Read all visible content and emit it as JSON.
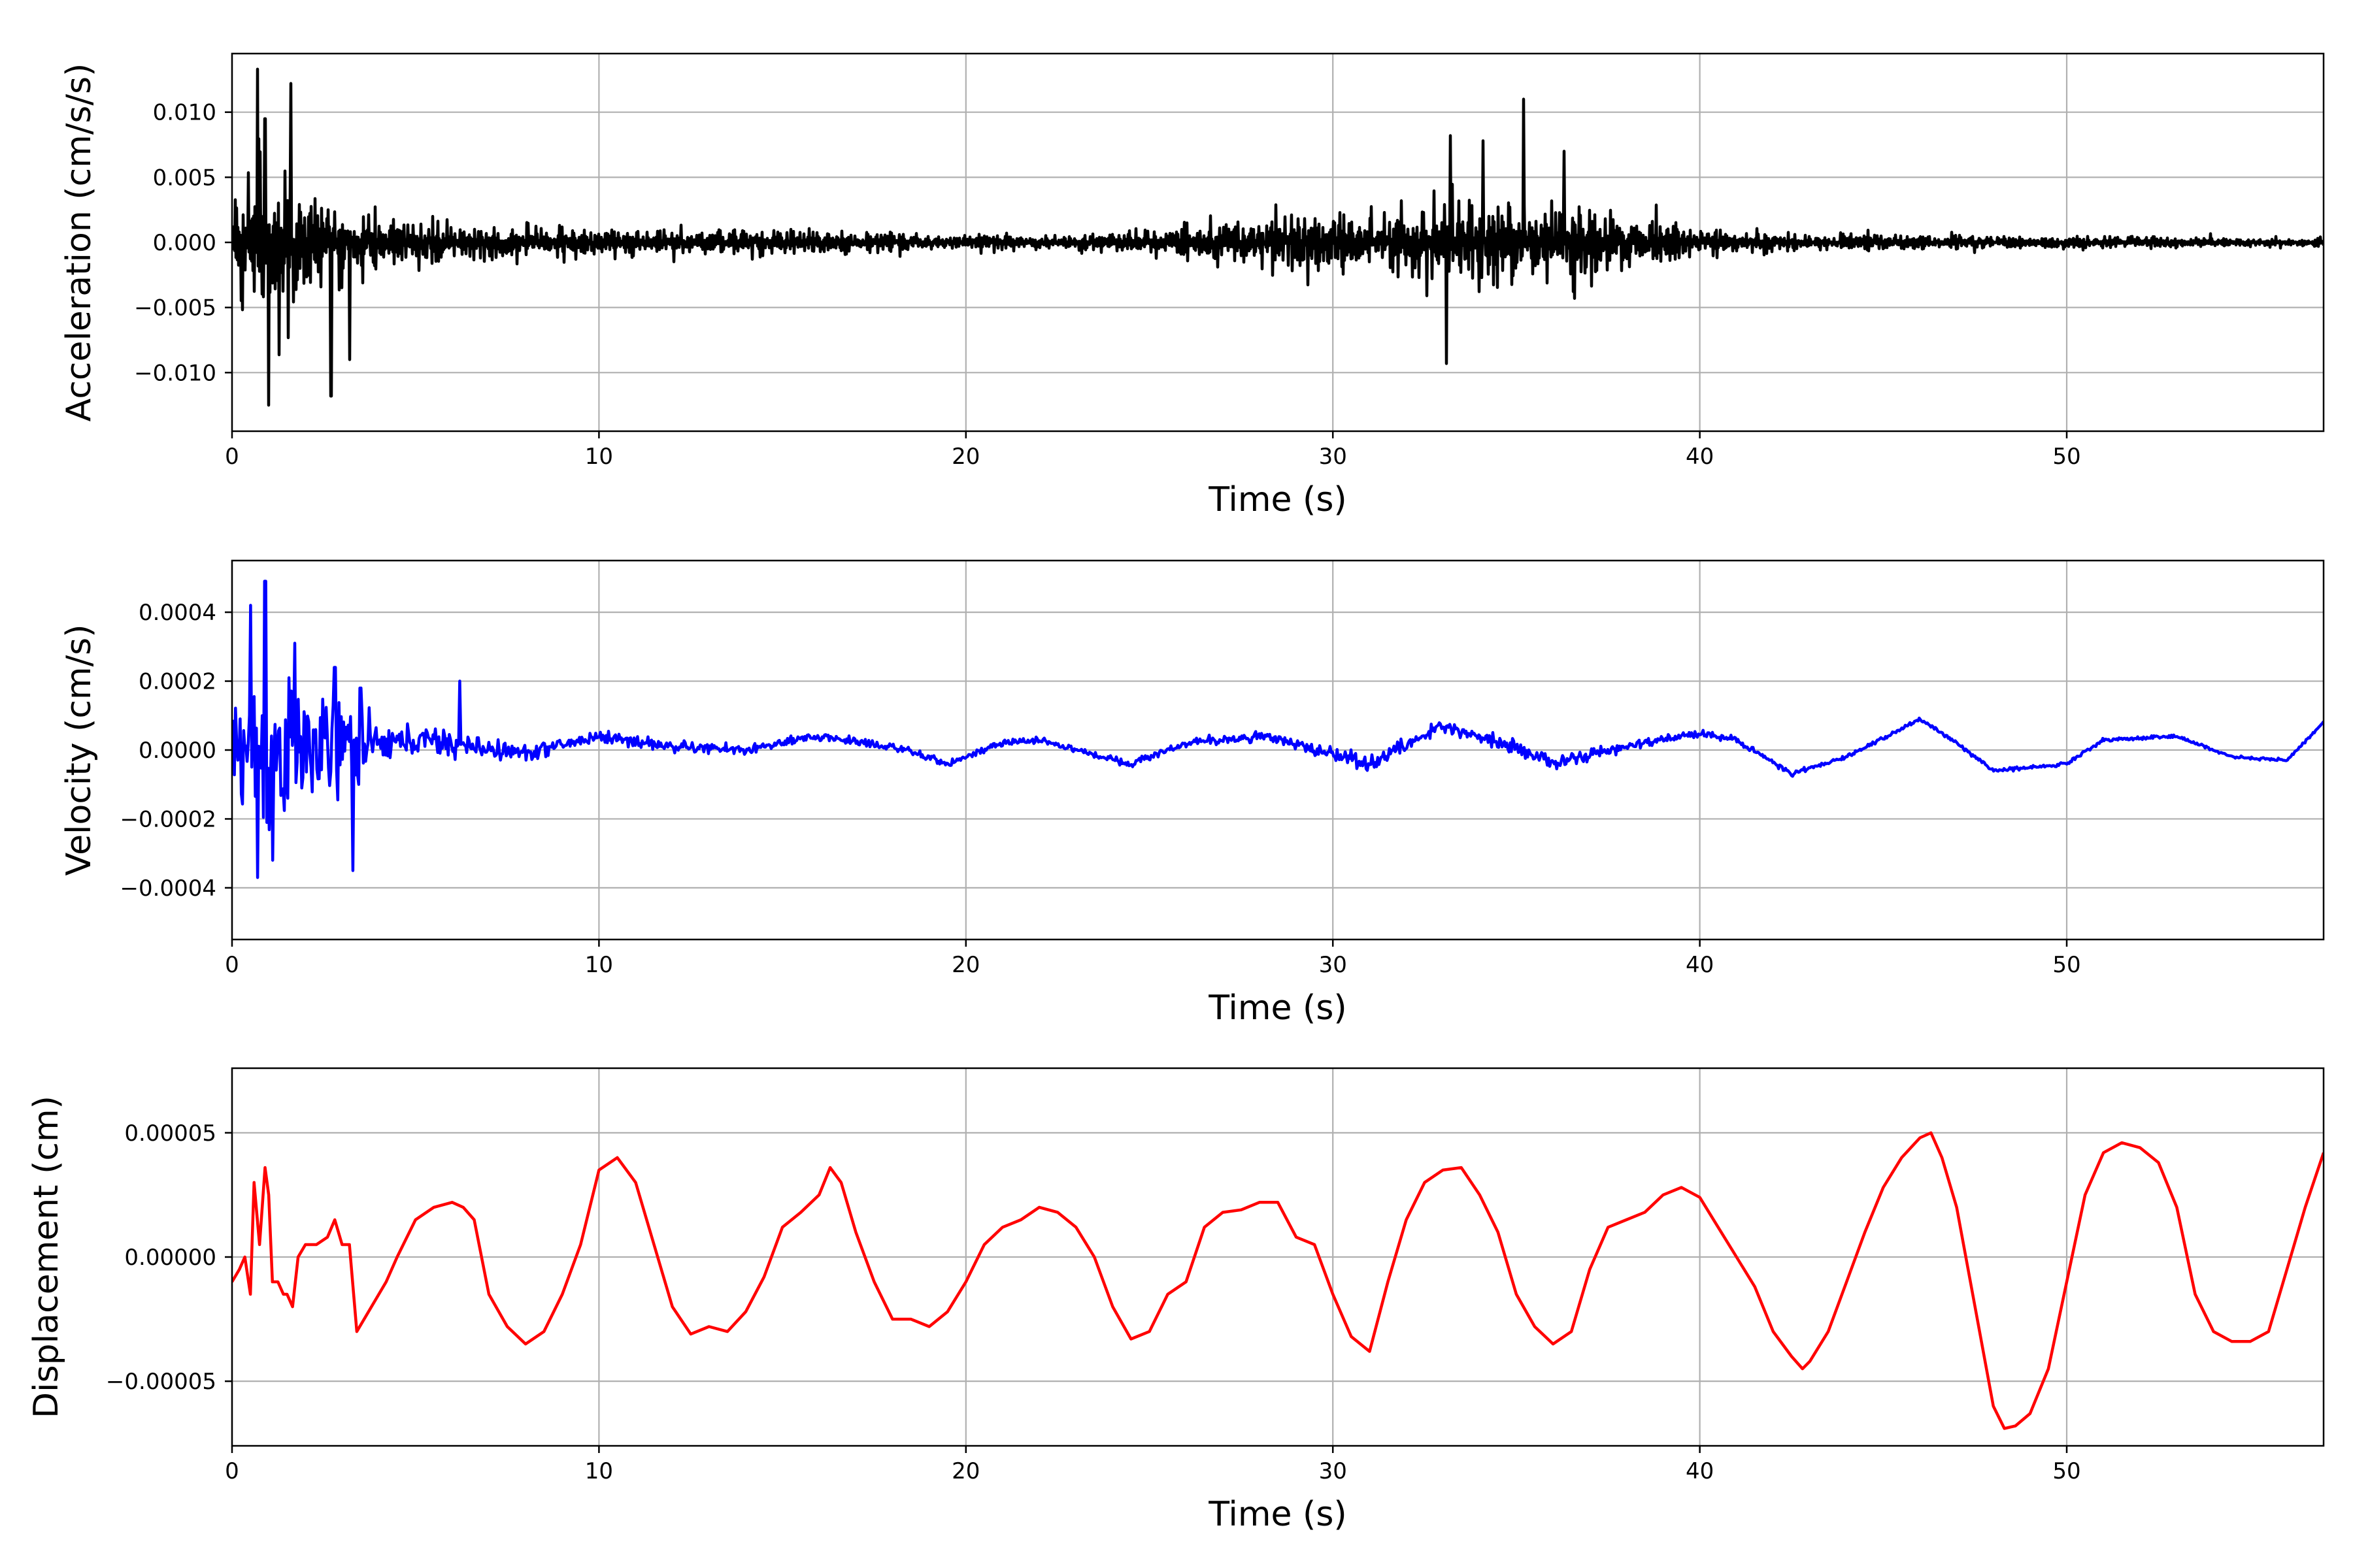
{
  "chart_data": [
    {
      "type": "line",
      "xlabel": "Time (s)",
      "ylabel": "Acceleration (cm/s/s)",
      "xlim": [
        0,
        57
      ],
      "ylim": [
        -0.0145,
        0.0145
      ],
      "xticks": [
        0,
        10,
        20,
        30,
        40,
        50
      ],
      "xtick_labels": [
        "0",
        "10",
        "20",
        "30",
        "40",
        "50"
      ],
      "yticks": [
        -0.01,
        -0.005,
        0.0,
        0.005,
        0.01
      ],
      "ytick_labels": [
        "−0.010",
        "−0.005",
        "0.000",
        "0.005",
        "0.010"
      ],
      "grid": true,
      "color": "#000000",
      "signal": "dense oscillating record: strong early burst 0–3 s, low-level noise 4–25 s, second burst 26–40 s, tapering after 42 s",
      "envelope": {
        "t": [
          0,
          0.5,
          1,
          1.5,
          2,
          2.5,
          3,
          3.5,
          4,
          5,
          6,
          7,
          8,
          10,
          12,
          15,
          18,
          20,
          22,
          24,
          25,
          26,
          28,
          30,
          32,
          33,
          34,
          35,
          36,
          37,
          38,
          39,
          40,
          41,
          42,
          43,
          45,
          50,
          53,
          55,
          57
        ],
        "amp": [
          0.009,
          0.011,
          0.012,
          0.01,
          0.0075,
          0.007,
          0.006,
          0.005,
          0.004,
          0.0035,
          0.003,
          0.0027,
          0.0025,
          0.0022,
          0.002,
          0.0018,
          0.0015,
          0.0012,
          0.0011,
          0.0012,
          0.0018,
          0.0025,
          0.0035,
          0.0045,
          0.0055,
          0.006,
          0.006,
          0.0065,
          0.0055,
          0.0045,
          0.004,
          0.0035,
          0.0022,
          0.0018,
          0.0015,
          0.0012,
          0.0011,
          0.0009,
          0.0008,
          0.0007,
          0.0006
        ]
      },
      "peaks": {
        "x": [
          0.7,
          1.0,
          1.6,
          0.9,
          2.7,
          3.2,
          35.2,
          33.2,
          34.1,
          36.3,
          33.1
        ],
        "y": [
          0.0133,
          -0.0125,
          0.0122,
          0.0095,
          -0.0118,
          -0.009,
          0.011,
          0.0082,
          0.0078,
          0.007,
          -0.0093
        ]
      }
    },
    {
      "type": "line",
      "xlabel": "Time (s)",
      "ylabel": "Velocity (cm/s)",
      "xlim": [
        0,
        57
      ],
      "ylim": [
        -0.00055,
        0.00055
      ],
      "xticks": [
        0,
        10,
        20,
        30,
        40,
        50
      ],
      "xtick_labels": [
        "0",
        "10",
        "20",
        "30",
        "40",
        "50"
      ],
      "yticks": [
        -0.0004,
        -0.0002,
        0.0,
        0.0002,
        0.0004
      ],
      "ytick_labels": [
        "−0.0004",
        "−0.0002",
        "0.0000",
        "0.0002",
        "0.0004"
      ],
      "grid": true,
      "color": "#0000ff",
      "trend": {
        "x": [
          0,
          3,
          5,
          8,
          10,
          12,
          14,
          16,
          18,
          19.5,
          21,
          22,
          23,
          24.5,
          26,
          28,
          30,
          31,
          33,
          35,
          36,
          38,
          40,
          41,
          42.5,
          44,
          46,
          47,
          48,
          50,
          51,
          53,
          54.5,
          56,
          57
        ],
        "y": [
          0,
          0,
          3e-05,
          -1e-05,
          4e-05,
          1e-05,
          0.0,
          4e-05,
          1e-05,
          -4e-05,
          2e-05,
          3e-05,
          0.0,
          -4e-05,
          2e-05,
          4e-05,
          -1e-05,
          -4e-05,
          7e-05,
          1e-05,
          -4e-05,
          1e-05,
          5e-05,
          3e-05,
          -7e-05,
          -2e-05,
          9e-05,
          2e-05,
          -6e-05,
          -4e-05,
          3e-05,
          4e-05,
          -2e-05,
          -3e-05,
          8e-05
        ]
      },
      "envelope": {
        "t": [
          0,
          0.5,
          1,
          1.5,
          2,
          2.5,
          3,
          3.5,
          4,
          5,
          6,
          7,
          9,
          12,
          15,
          18,
          20,
          25,
          30,
          33,
          35,
          38,
          40,
          42,
          45,
          57
        ],
        "amp": [
          0.00015,
          0.00038,
          0.00042,
          0.0003,
          0.00025,
          0.0002,
          0.00025,
          0.00018,
          7e-05,
          7e-05,
          6e-05,
          4e-05,
          3e-05,
          2.5e-05,
          2e-05,
          2e-05,
          1.2e-05,
          1.5e-05,
          3e-05,
          3e-05,
          3e-05,
          2e-05,
          1.5e-05,
          1e-05,
          8e-06,
          6e-06
        ]
      },
      "peaks": {
        "x": [
          0.5,
          0.7,
          0.9,
          1.1,
          1.7,
          2.8,
          3.3,
          3.5,
          6.2
        ],
        "y": [
          0.00042,
          -0.00037,
          0.00049,
          -0.00032,
          0.00031,
          0.00024,
          -0.00035,
          0.00018,
          0.0002
        ]
      }
    },
    {
      "type": "line",
      "xlabel": "Time (s)",
      "ylabel": "Displacement (cm)",
      "xlim": [
        0,
        57
      ],
      "ylim": [
        -7.6e-05,
        7.6e-05
      ],
      "xticks": [
        0,
        10,
        20,
        30,
        40,
        50
      ],
      "xtick_labels": [
        "0",
        "10",
        "20",
        "30",
        "40",
        "50"
      ],
      "yticks": [
        -5e-05,
        0.0,
        5e-05
      ],
      "ytick_labels": [
        "−0.00005",
        "0.00000",
        "0.00005"
      ],
      "grid": true,
      "color": "#ff0000",
      "x": [
        0,
        0.2,
        0.35,
        0.5,
        0.6,
        0.75,
        0.9,
        1.0,
        1.1,
        1.25,
        1.4,
        1.5,
        1.65,
        1.8,
        2.0,
        2.3,
        2.6,
        2.8,
        3.0,
        3.2,
        3.4,
        3.6,
        3.8,
        4.2,
        4.5,
        5.0,
        5.5,
        6.0,
        6.3,
        6.6,
        7.0,
        7.5,
        8.0,
        8.5,
        9.0,
        9.5,
        10.0,
        10.5,
        11.0,
        11.5,
        12.0,
        12.5,
        13.0,
        13.5,
        14.0,
        14.5,
        15.0,
        15.5,
        16.0,
        16.3,
        16.6,
        17.0,
        17.5,
        18.0,
        18.5,
        19.0,
        19.5,
        20.0,
        20.5,
        21.0,
        21.5,
        22.0,
        22.5,
        23.0,
        23.5,
        24.0,
        24.5,
        25.0,
        25.5,
        26.0,
        26.5,
        27.0,
        27.5,
        28.0,
        28.5,
        29.0,
        29.5,
        30.0,
        30.5,
        31.0,
        31.5,
        32.0,
        32.5,
        33.0,
        33.5,
        34.0,
        34.5,
        35.0,
        35.5,
        36.0,
        36.5,
        37.0,
        37.5,
        38.0,
        38.5,
        39.0,
        39.5,
        40.0,
        40.5,
        41.0,
        41.5,
        42.0,
        42.5,
        42.8,
        43.0,
        43.5,
        44.0,
        44.5,
        45.0,
        45.5,
        46.0,
        46.3,
        46.6,
        47.0,
        47.5,
        48.0,
        48.3,
        48.6,
        49.0,
        49.5,
        50.0,
        50.5,
        51.0,
        51.5,
        52.0,
        52.5,
        53.0,
        53.5,
        54.0,
        54.5,
        55.0,
        55.5,
        56.0,
        56.5,
        57.0
      ],
      "y": [
        -1e-05,
        -5e-06,
        0.0,
        -1.5e-05,
        3e-05,
        5e-06,
        3.6e-05,
        2.5e-05,
        -1e-05,
        -1e-05,
        -1.5e-05,
        -1.5e-05,
        -2e-05,
        0.0,
        5e-06,
        5e-06,
        8e-06,
        1.5e-05,
        5e-06,
        5e-06,
        -3e-05,
        -2.5e-05,
        -2e-05,
        -1e-05,
        0.0,
        1.5e-05,
        2e-05,
        2.2e-05,
        2e-05,
        1.5e-05,
        -1.5e-05,
        -2.8e-05,
        -3.5e-05,
        -3e-05,
        -1.5e-05,
        5e-06,
        3.5e-05,
        4e-05,
        3e-05,
        5e-06,
        -2e-05,
        -3.1e-05,
        -2.8e-05,
        -3e-05,
        -2.2e-05,
        -8e-06,
        1.2e-05,
        1.8e-05,
        2.5e-05,
        3.6e-05,
        3e-05,
        1e-05,
        -1e-05,
        -2.5e-05,
        -2.5e-05,
        -2.8e-05,
        -2.2e-05,
        -1e-05,
        5e-06,
        1.2e-05,
        1.5e-05,
        2e-05,
        1.8e-05,
        1.2e-05,
        0.0,
        -2e-05,
        -3.3e-05,
        -3e-05,
        -1.5e-05,
        -1e-05,
        1.2e-05,
        1.8e-05,
        1.9e-05,
        2.2e-05,
        2.2e-05,
        8e-06,
        5e-06,
        -1.5e-05,
        -3.2e-05,
        -3.8e-05,
        -1e-05,
        1.5e-05,
        3e-05,
        3.5e-05,
        3.6e-05,
        2.5e-05,
        1e-05,
        -1.5e-05,
        -2.8e-05,
        -3.5e-05,
        -3e-05,
        -5e-06,
        1.2e-05,
        1.5e-05,
        1.8e-05,
        2.5e-05,
        2.8e-05,
        2.4e-05,
        1.2e-05,
        0.0,
        -1.2e-05,
        -3e-05,
        -4e-05,
        -4.5e-05,
        -4.2e-05,
        -3e-05,
        -1e-05,
        1e-05,
        2.8e-05,
        4e-05,
        4.8e-05,
        5e-05,
        4e-05,
        2e-05,
        -2e-05,
        -6e-05,
        -6.9e-05,
        -6.8e-05,
        -6.3e-05,
        -4.5e-05,
        -1e-05,
        2.5e-05,
        4.2e-05,
        4.6e-05,
        4.4e-05,
        3.8e-05,
        2e-05,
        -1.5e-05,
        -3e-05,
        -3.4e-05,
        -3.4e-05,
        -3e-05,
        -5e-06,
        2e-05,
        4.2e-05
      ]
    }
  ]
}
